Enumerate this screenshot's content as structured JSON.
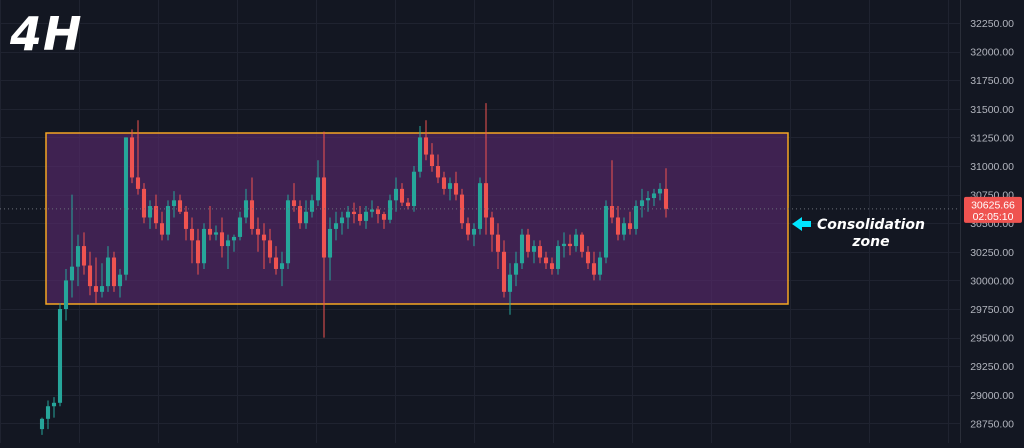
{
  "timeframe_label": "4H",
  "colors": {
    "background": "#131722",
    "grid": "#1f2330",
    "up": "#26a69a",
    "down": "#ef5350",
    "zone_fill": "#5a2a6e",
    "zone_border": "#f5a623",
    "arrow": "#00e5ff",
    "axis_text": "#b2b5be"
  },
  "annotation": {
    "line1": "Consolidation",
    "line2": "zone"
  },
  "chart_data": {
    "type": "candlestick",
    "title": "",
    "xlabel": "",
    "ylabel": "",
    "ylim": [
      28650,
      32350
    ],
    "y_ticks": [
      "32250.00",
      "32000.00",
      "31750.00",
      "31500.00",
      "31250.00",
      "31000.00",
      "30750.00",
      "30500.00",
      "30250.00",
      "30000.00",
      "29750.00",
      "29500.00",
      "29250.00",
      "29000.00",
      "28750.00"
    ],
    "current_price": "30625.66",
    "countdown": "02:05:10",
    "zone": {
      "low": 29820,
      "high": 31300
    },
    "candles": [
      [
        28700,
        28800,
        28650,
        28790
      ],
      [
        28790,
        28950,
        28700,
        28900
      ],
      [
        28900,
        28980,
        28800,
        28930
      ],
      [
        28930,
        29800,
        28900,
        29750
      ],
      [
        29750,
        30100,
        29650,
        30000
      ],
      [
        30000,
        30750,
        29850,
        30120
      ],
      [
        30120,
        30400,
        29950,
        30300
      ],
      [
        30300,
        30420,
        30050,
        30130
      ],
      [
        30130,
        30250,
        29870,
        29950
      ],
      [
        29950,
        30200,
        29800,
        29900
      ],
      [
        29900,
        30150,
        29850,
        29950
      ],
      [
        29950,
        30300,
        29900,
        30200
      ],
      [
        30200,
        30250,
        29900,
        29950
      ],
      [
        29950,
        30100,
        29850,
        30050
      ],
      [
        30050,
        31250,
        30000,
        31250
      ],
      [
        31250,
        31320,
        30850,
        30900
      ],
      [
        30900,
        31400,
        30750,
        30800
      ],
      [
        30800,
        30850,
        30500,
        30550
      ],
      [
        30550,
        30700,
        30450,
        30650
      ],
      [
        30650,
        30750,
        30450,
        30500
      ],
      [
        30500,
        30600,
        30350,
        30400
      ],
      [
        30400,
        30700,
        30350,
        30650
      ],
      [
        30650,
        30780,
        30550,
        30700
      ],
      [
        30700,
        30750,
        30580,
        30600
      ],
      [
        30600,
        30650,
        30350,
        30450
      ],
      [
        30450,
        30550,
        30150,
        30350
      ],
      [
        30350,
        30450,
        30050,
        30150
      ],
      [
        30150,
        30500,
        30100,
        30450
      ],
      [
        30450,
        30650,
        30350,
        30400
      ],
      [
        30400,
        30480,
        30350,
        30420
      ],
      [
        30420,
        30550,
        30200,
        30300
      ],
      [
        30300,
        30400,
        30100,
        30350
      ],
      [
        30350,
        30400,
        30250,
        30380
      ],
      [
        30380,
        30600,
        30350,
        30550
      ],
      [
        30550,
        30800,
        30500,
        30700
      ],
      [
        30700,
        30900,
        30400,
        30450
      ],
      [
        30450,
        30550,
        30250,
        30400
      ],
      [
        30400,
        30500,
        30100,
        30350
      ],
      [
        30350,
        30450,
        30150,
        30200
      ],
      [
        30200,
        30300,
        30050,
        30100
      ],
      [
        30100,
        30250,
        29950,
        30150
      ],
      [
        30150,
        30750,
        30100,
        30700
      ],
      [
        30700,
        30850,
        30600,
        30650
      ],
      [
        30650,
        30700,
        30450,
        30500
      ],
      [
        30500,
        30700,
        30450,
        30600
      ],
      [
        30600,
        30750,
        30550,
        30700
      ],
      [
        30700,
        31050,
        30650,
        30900
      ],
      [
        30900,
        31300,
        29500,
        30200
      ],
      [
        30200,
        30550,
        30000,
        30450
      ],
      [
        30450,
        30600,
        30350,
        30500
      ],
      [
        30500,
        30600,
        30400,
        30550
      ],
      [
        30550,
        30650,
        30450,
        30600
      ],
      [
        30600,
        30680,
        30500,
        30580
      ],
      [
        30580,
        30650,
        30480,
        30520
      ],
      [
        30520,
        30650,
        30450,
        30600
      ],
      [
        30600,
        30700,
        30550,
        30620
      ],
      [
        30620,
        30650,
        30500,
        30580
      ],
      [
        30580,
        30600,
        30450,
        30530
      ],
      [
        30530,
        30750,
        30500,
        30700
      ],
      [
        30700,
        30900,
        30600,
        30800
      ],
      [
        30800,
        30850,
        30650,
        30680
      ],
      [
        30680,
        30720,
        30620,
        30650
      ],
      [
        30650,
        31000,
        30600,
        30950
      ],
      [
        30950,
        31350,
        30900,
        31250
      ],
      [
        31250,
        31400,
        31050,
        31100
      ],
      [
        31100,
        31200,
        30950,
        31000
      ],
      [
        31000,
        31100,
        30850,
        30900
      ],
      [
        30900,
        30950,
        30750,
        30800
      ],
      [
        30800,
        30900,
        30700,
        30850
      ],
      [
        30850,
        30950,
        30700,
        30750
      ],
      [
        30750,
        30800,
        30450,
        30500
      ],
      [
        30500,
        30550,
        30350,
        30400
      ],
      [
        30400,
        30500,
        30300,
        30450
      ],
      [
        30450,
        30900,
        30400,
        30850
      ],
      [
        30850,
        31550,
        30400,
        30550
      ],
      [
        30550,
        30600,
        30250,
        30400
      ],
      [
        30400,
        30500,
        30100,
        30250
      ],
      [
        30250,
        30350,
        29850,
        29900
      ],
      [
        29900,
        30150,
        29700,
        30050
      ],
      [
        30050,
        30250,
        29950,
        30150
      ],
      [
        30150,
        30450,
        30100,
        30400
      ],
      [
        30400,
        30450,
        30200,
        30250
      ],
      [
        30250,
        30350,
        30150,
        30300
      ],
      [
        30300,
        30350,
        30150,
        30200
      ],
      [
        30200,
        30250,
        30100,
        30150
      ],
      [
        30150,
        30200,
        30050,
        30100
      ],
      [
        30100,
        30350,
        30050,
        30300
      ],
      [
        30300,
        30420,
        30200,
        30320
      ],
      [
        30320,
        30400,
        30220,
        30300
      ],
      [
        30300,
        30450,
        30250,
        30400
      ],
      [
        30400,
        30420,
        30200,
        30250
      ],
      [
        30250,
        30300,
        30100,
        30150
      ],
      [
        30150,
        30250,
        30000,
        30050
      ],
      [
        30050,
        30250,
        30000,
        30200
      ],
      [
        30200,
        30700,
        30150,
        30650
      ],
      [
        30650,
        31050,
        30500,
        30550
      ],
      [
        30550,
        30650,
        30350,
        30400
      ],
      [
        30400,
        30550,
        30350,
        30500
      ],
      [
        30500,
        30600,
        30400,
        30450
      ],
      [
        30450,
        30700,
        30400,
        30650
      ],
      [
        30650,
        30800,
        30550,
        30700
      ],
      [
        30700,
        30780,
        30600,
        30720
      ],
      [
        30720,
        30800,
        30650,
        30760
      ],
      [
        30760,
        30850,
        30700,
        30800
      ],
      [
        30800,
        30980,
        30550,
        30625
      ]
    ]
  }
}
